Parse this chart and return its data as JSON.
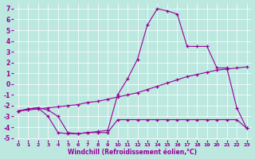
{
  "xlabel": "Windchill (Refroidissement éolien,°C)",
  "bg_color": "#bce8e0",
  "line_color": "#990099",
  "xlim": [
    -0.5,
    23.5
  ],
  "ylim": [
    -5.2,
    7.5
  ],
  "xticks": [
    0,
    1,
    2,
    3,
    4,
    5,
    6,
    7,
    8,
    9,
    10,
    11,
    12,
    13,
    14,
    15,
    16,
    17,
    18,
    19,
    20,
    21,
    22,
    23
  ],
  "yticks": [
    -5,
    -4,
    -3,
    -2,
    -1,
    0,
    1,
    2,
    3,
    4,
    5,
    6,
    7
  ],
  "curve_main_x": [
    0,
    1,
    2,
    3,
    4,
    5,
    6,
    7,
    8,
    9,
    10,
    11,
    12,
    13,
    14,
    15,
    16,
    17,
    18,
    19,
    20,
    21,
    22,
    23
  ],
  "curve_main_y": [
    -2.5,
    -2.3,
    -2.2,
    -2.4,
    -3.0,
    -4.5,
    -4.6,
    -4.5,
    -4.4,
    -4.3,
    -1.0,
    0.5,
    2.3,
    5.5,
    7.0,
    6.8,
    6.5,
    3.5,
    3.5,
    3.5,
    1.5,
    1.5,
    -2.2,
    -4.1
  ],
  "curve_diag_x": [
    0,
    1,
    2,
    3,
    4,
    5,
    6,
    7,
    8,
    9,
    10,
    11,
    12,
    13,
    14,
    15,
    16,
    17,
    18,
    19,
    20,
    21,
    22,
    23
  ],
  "curve_diag_y": [
    -2.5,
    -2.4,
    -2.3,
    -2.2,
    -2.1,
    -2.0,
    -1.9,
    -1.7,
    -1.6,
    -1.4,
    -1.2,
    -1.0,
    -0.8,
    -0.5,
    -0.2,
    0.1,
    0.4,
    0.7,
    0.9,
    1.1,
    1.3,
    1.4,
    1.5,
    1.6
  ],
  "curve_flat_x": [
    0,
    1,
    2,
    3,
    4,
    5,
    6,
    7,
    8,
    9,
    10,
    11,
    12,
    13,
    14,
    15,
    16,
    17,
    18,
    19,
    20,
    21,
    22,
    23
  ],
  "curve_flat_y": [
    -2.5,
    -2.3,
    -2.2,
    -3.0,
    -4.5,
    -4.6,
    -4.6,
    -4.5,
    -4.5,
    -4.5,
    -3.3,
    -3.3,
    -3.3,
    -3.3,
    -3.3,
    -3.3,
    -3.3,
    -3.3,
    -3.3,
    -3.3,
    -3.3,
    -3.3,
    -3.3,
    -4.1
  ]
}
